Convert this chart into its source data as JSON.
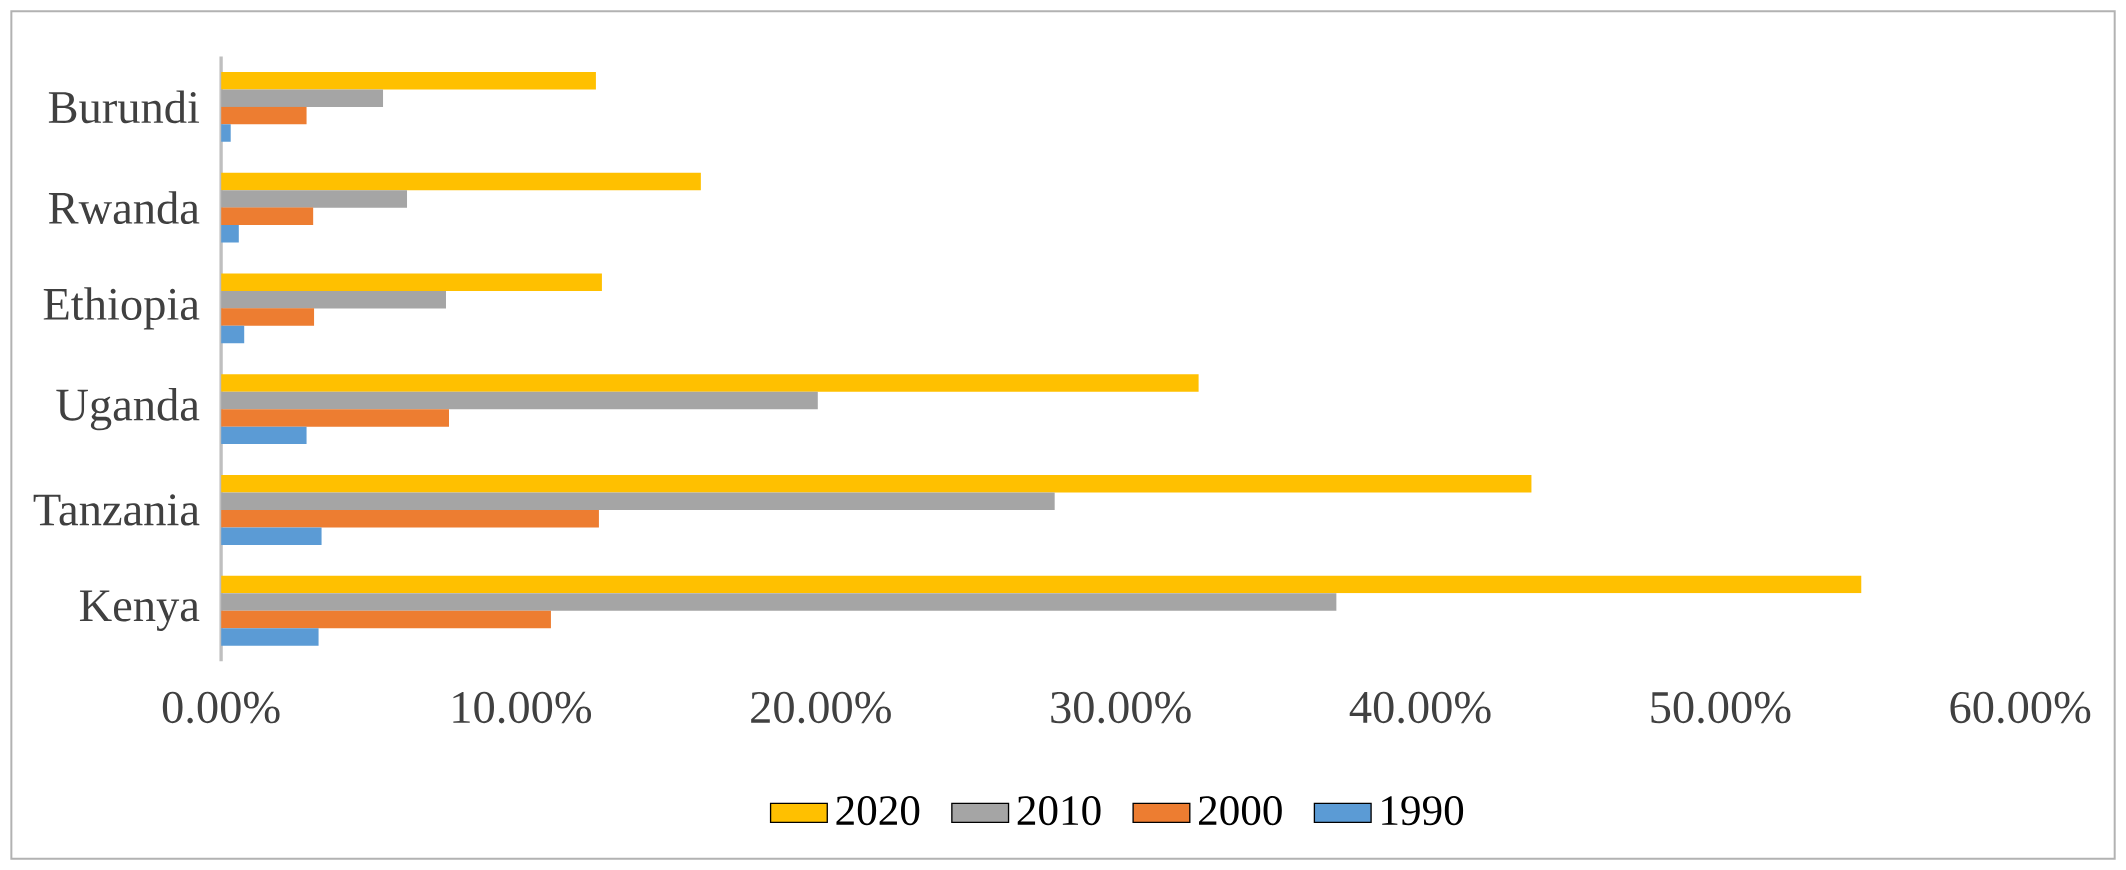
{
  "chart_data": {
    "type": "bar",
    "orientation": "horizontal",
    "categories": [
      "Burundi",
      "Rwanda",
      "Ethiopia",
      "Uganda",
      "Tanzania",
      "Kenya"
    ],
    "series": [
      {
        "name": "2020",
        "color": "#ffc000",
        "values": [
          12.5,
          16.0,
          12.7,
          32.6,
          43.7,
          54.7
        ]
      },
      {
        "name": "2010",
        "color": "#a5a5a5",
        "values": [
          5.4,
          6.2,
          7.5,
          19.9,
          27.8,
          37.2
        ]
      },
      {
        "name": "2000",
        "color": "#ed7d31",
        "values": [
          2.85,
          3.07,
          3.1,
          7.6,
          12.6,
          11.0
        ]
      },
      {
        "name": "1990",
        "color": "#5b9bd5",
        "values": [
          0.32,
          0.59,
          0.77,
          2.85,
          3.35,
          3.25
        ]
      }
    ],
    "xlim": [
      0,
      60
    ],
    "xticks": [
      {
        "value": 0,
        "label": "0.00%"
      },
      {
        "value": 10,
        "label": "10.00%"
      },
      {
        "value": 20,
        "label": "20.00%"
      },
      {
        "value": 30,
        "label": "30.00%"
      },
      {
        "value": 40,
        "label": "40.00%"
      },
      {
        "value": 50,
        "label": "50.00%"
      },
      {
        "value": 60,
        "label": "60.00%"
      }
    ],
    "grid": false,
    "legend": "bottom"
  }
}
